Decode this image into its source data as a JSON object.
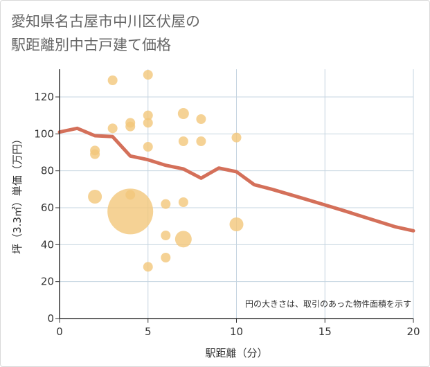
{
  "title": "愛知県名古屋市中川区伏屋の\n駅距離別中古戸建て価格",
  "chart_data": {
    "type": "scatter",
    "title": "愛知県名古屋市中川区伏屋の駅距離別中古戸建て価格",
    "xlabel": "駅距離（分）",
    "ylabel": "坪（3.3㎡）単価（万円）",
    "xlim": [
      0,
      20
    ],
    "ylim": [
      0,
      135
    ],
    "xticks": [
      0,
      5,
      10,
      15,
      20
    ],
    "yticks": [
      0,
      20,
      40,
      60,
      80,
      100,
      120
    ],
    "grid": true,
    "note": "円の大きさは、取引のあった物件面積を示す",
    "colors": {
      "bubble": "#f2c77a",
      "trend": "#d4705a",
      "grid": "#c5d4e0",
      "axis": "#333333"
    },
    "points": [
      {
        "x": 2,
        "y": 91,
        "size": 7
      },
      {
        "x": 2,
        "y": 89,
        "size": 7
      },
      {
        "x": 2,
        "y": 66,
        "size": 10
      },
      {
        "x": 3,
        "y": 129,
        "size": 7
      },
      {
        "x": 3,
        "y": 103,
        "size": 7
      },
      {
        "x": 4,
        "y": 106,
        "size": 7
      },
      {
        "x": 4,
        "y": 104,
        "size": 7
      },
      {
        "x": 4,
        "y": 67,
        "size": 7
      },
      {
        "x": 4,
        "y": 58,
        "size": 33
      },
      {
        "x": 5,
        "y": 132,
        "size": 7
      },
      {
        "x": 5,
        "y": 110,
        "size": 7
      },
      {
        "x": 5,
        "y": 106,
        "size": 7
      },
      {
        "x": 5,
        "y": 93,
        "size": 7
      },
      {
        "x": 5,
        "y": 28,
        "size": 7
      },
      {
        "x": 6,
        "y": 62,
        "size": 7
      },
      {
        "x": 6,
        "y": 45,
        "size": 7
      },
      {
        "x": 6,
        "y": 33,
        "size": 7
      },
      {
        "x": 7,
        "y": 111,
        "size": 8
      },
      {
        "x": 7,
        "y": 96,
        "size": 7
      },
      {
        "x": 7,
        "y": 63,
        "size": 7
      },
      {
        "x": 7,
        "y": 43,
        "size": 12
      },
      {
        "x": 8,
        "y": 108,
        "size": 7
      },
      {
        "x": 8,
        "y": 96,
        "size": 7
      },
      {
        "x": 10,
        "y": 98,
        "size": 7
      },
      {
        "x": 10,
        "y": 51,
        "size": 10
      }
    ],
    "trend": {
      "x": [
        0,
        1,
        2,
        3,
        4,
        5,
        6,
        7,
        8,
        9,
        10,
        11,
        12,
        13,
        14,
        15,
        16,
        17,
        18,
        19,
        20
      ],
      "y": [
        101,
        103,
        99,
        98.5,
        88,
        86,
        83,
        81,
        76,
        81.5,
        79.5,
        72.5,
        70,
        67.2,
        64.4,
        61.5,
        58.6,
        55.6,
        52.6,
        49.6,
        47.5
      ]
    }
  }
}
